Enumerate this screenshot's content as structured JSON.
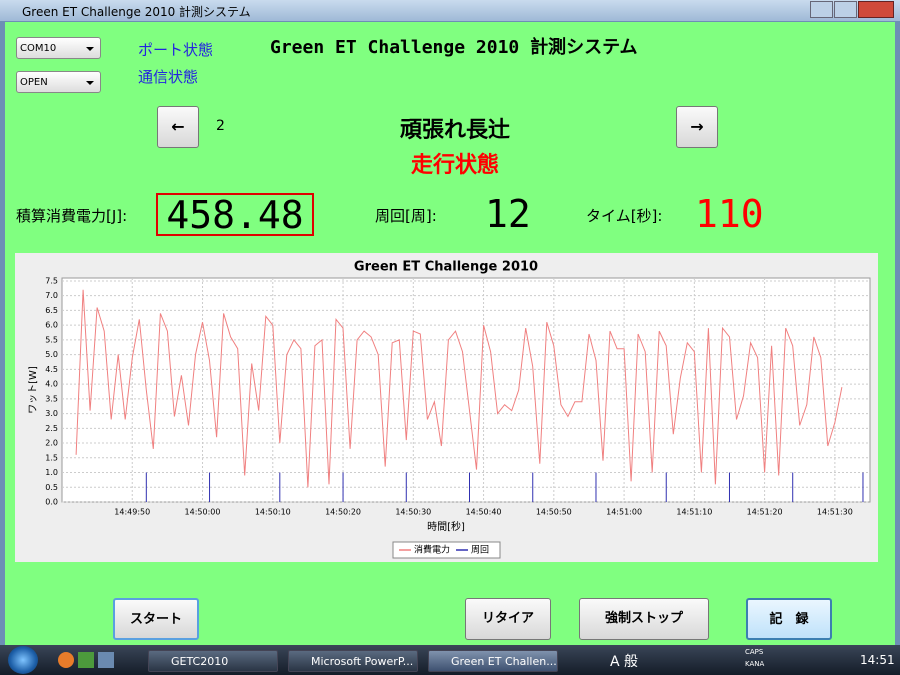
{
  "window_title": "Green ET Challenge 2010 計測システム",
  "port_select": "COM10",
  "comm_select": "OPEN",
  "port_status": "ポート状態",
  "comm_status": "通信状態",
  "app_title": "Green ET Challenge 2010 計測システム",
  "nav": {
    "prev": "←",
    "index": "2",
    "next": "→"
  },
  "team": "頑張れ長辻",
  "state": "走行状態",
  "energy_label": "積算消費電力[J]:",
  "energy": "458.48",
  "laps_label": "周回[周]:",
  "laps": "12",
  "time_label": "タイム[秒]:",
  "time": "110",
  "buttons": [
    "スタート",
    "リタイア",
    "強制ストップ",
    "記　録"
  ],
  "taskbar": {
    "tasks": [
      "GETC2010",
      "Microsoft PowerP...",
      "Green ET Challen..."
    ],
    "ime": "A 般",
    "caps": "CAPS",
    "kana": "KANA",
    "clock": "14:51"
  },
  "chart_data": {
    "type": "line",
    "title": "Green ET Challenge 2010",
    "x_label": "時間[秒]",
    "y_label": "ワット[W]",
    "grid": true,
    "xlim": [
      "14:49:40",
      "14:51:35"
    ],
    "xticks": [
      "14:49:50",
      "14:50:00",
      "14:50:10",
      "14:50:20",
      "14:50:30",
      "14:50:40",
      "14:50:50",
      "14:51:00",
      "14:51:10",
      "14:51:20",
      "14:51:30"
    ],
    "ylim": [
      0,
      7.6
    ],
    "yticks": [
      {
        "value": 0,
        "label": "0.0"
      },
      0.5,
      {
        "value": 1,
        "label": "1.0"
      },
      1.5,
      {
        "value": 2,
        "label": "2.0"
      },
      2.5,
      {
        "value": 3,
        "label": "3.0"
      },
      3.5,
      {
        "value": 4,
        "label": "4.0"
      },
      4.5,
      {
        "value": 5,
        "label": "5.0"
      },
      5.5,
      {
        "value": 6,
        "label": "6.0"
      },
      6.5,
      {
        "value": 7,
        "label": "7.0"
      },
      7.5
    ],
    "series": [
      {
        "name": "消費電力",
        "color": "#f08080",
        "x": [
          "14:49:42",
          "14:49:43",
          "14:49:44",
          "14:49:45",
          "14:49:46",
          "14:49:47",
          "14:49:48",
          "14:49:49",
          "14:49:50",
          "14:49:51",
          "14:49:52",
          "14:49:53",
          "14:49:54",
          "14:49:55",
          "14:49:56",
          "14:49:57",
          "14:49:58",
          "14:49:59",
          "14:50:00",
          "14:50:01",
          "14:50:02",
          "14:50:03",
          "14:50:04",
          "14:50:05",
          "14:50:06",
          "14:50:07",
          "14:50:08",
          "14:50:09",
          "14:50:10",
          "14:50:11",
          "14:50:12",
          "14:50:13",
          "14:50:14",
          "14:50:15",
          "14:50:16",
          "14:50:17",
          "14:50:18",
          "14:50:19",
          "14:50:20",
          "14:50:21",
          "14:50:22",
          "14:50:23",
          "14:50:24",
          "14:50:25",
          "14:50:26",
          "14:50:27",
          "14:50:28",
          "14:50:29",
          "14:50:30",
          "14:50:31",
          "14:50:32",
          "14:50:33",
          "14:50:34",
          "14:50:35",
          "14:50:36",
          "14:50:37",
          "14:50:38",
          "14:50:39",
          "14:50:40",
          "14:50:41",
          "14:50:42",
          "14:50:43",
          "14:50:44",
          "14:50:45",
          "14:50:46",
          "14:50:47",
          "14:50:48",
          "14:50:49",
          "14:50:50",
          "14:50:51",
          "14:50:52",
          "14:50:53",
          "14:50:54",
          "14:50:55",
          "14:50:56",
          "14:50:57",
          "14:50:58",
          "14:50:59",
          "14:51:00",
          "14:51:01",
          "14:51:02",
          "14:51:03",
          "14:51:04",
          "14:51:05",
          "14:51:06",
          "14:51:07",
          "14:51:08",
          "14:51:09",
          "14:51:10",
          "14:51:11",
          "14:51:12",
          "14:51:13",
          "14:51:14",
          "14:51:15",
          "14:51:16",
          "14:51:17",
          "14:51:18",
          "14:51:19",
          "14:51:20",
          "14:51:21",
          "14:51:22",
          "14:51:23",
          "14:51:24",
          "14:51:25",
          "14:51:26",
          "14:51:27",
          "14:51:28",
          "14:51:29",
          "14:51:30",
          "14:51:31"
        ],
        "values": [
          1.6,
          7.2,
          3.1,
          6.6,
          5.8,
          2.8,
          5.0,
          2.8,
          4.9,
          6.2,
          3.8,
          1.8,
          6.4,
          5.8,
          2.9,
          4.3,
          2.6,
          5.0,
          6.1,
          4.8,
          2.2,
          6.4,
          5.6,
          5.2,
          0.9,
          4.7,
          3.1,
          6.3,
          6.0,
          2.0,
          5.0,
          5.5,
          5.2,
          0.5,
          5.3,
          5.5,
          0.6,
          6.2,
          5.9,
          1.8,
          5.5,
          5.8,
          5.6,
          5.0,
          1.2,
          5.4,
          5.5,
          2.1,
          5.8,
          5.7,
          2.8,
          3.4,
          1.9,
          5.5,
          5.8,
          5.1,
          3.1,
          1.1,
          6.0,
          5.1,
          3.0,
          3.3,
          3.1,
          3.8,
          5.9,
          4.6,
          1.3,
          6.1,
          5.3,
          3.3,
          2.9,
          3.4,
          3.4,
          5.7,
          4.8,
          1.4,
          5.8,
          5.2,
          5.2,
          0.7,
          5.7,
          5.1,
          1.0,
          5.8,
          5.3,
          2.3,
          4.2,
          5.4,
          5.1,
          1.0,
          5.9,
          0.6,
          5.9,
          5.6,
          2.8,
          3.6,
          5.4,
          4.9,
          1.0,
          5.3,
          0.9,
          5.9,
          5.3,
          2.6,
          3.3,
          5.6,
          4.9,
          1.9,
          2.7,
          3.9
        ]
      },
      {
        "name": "周回",
        "color": "#3030b0",
        "x": [
          "14:49:52",
          "14:50:01",
          "14:50:11",
          "14:50:20",
          "14:50:29",
          "14:50:38",
          "14:50:47",
          "14:50:56",
          "14:51:06",
          "14:51:15",
          "14:51:24",
          "14:51:34"
        ],
        "values": [
          1,
          1,
          1,
          1,
          1,
          1,
          1,
          1,
          1,
          1,
          1,
          1
        ]
      }
    ]
  }
}
